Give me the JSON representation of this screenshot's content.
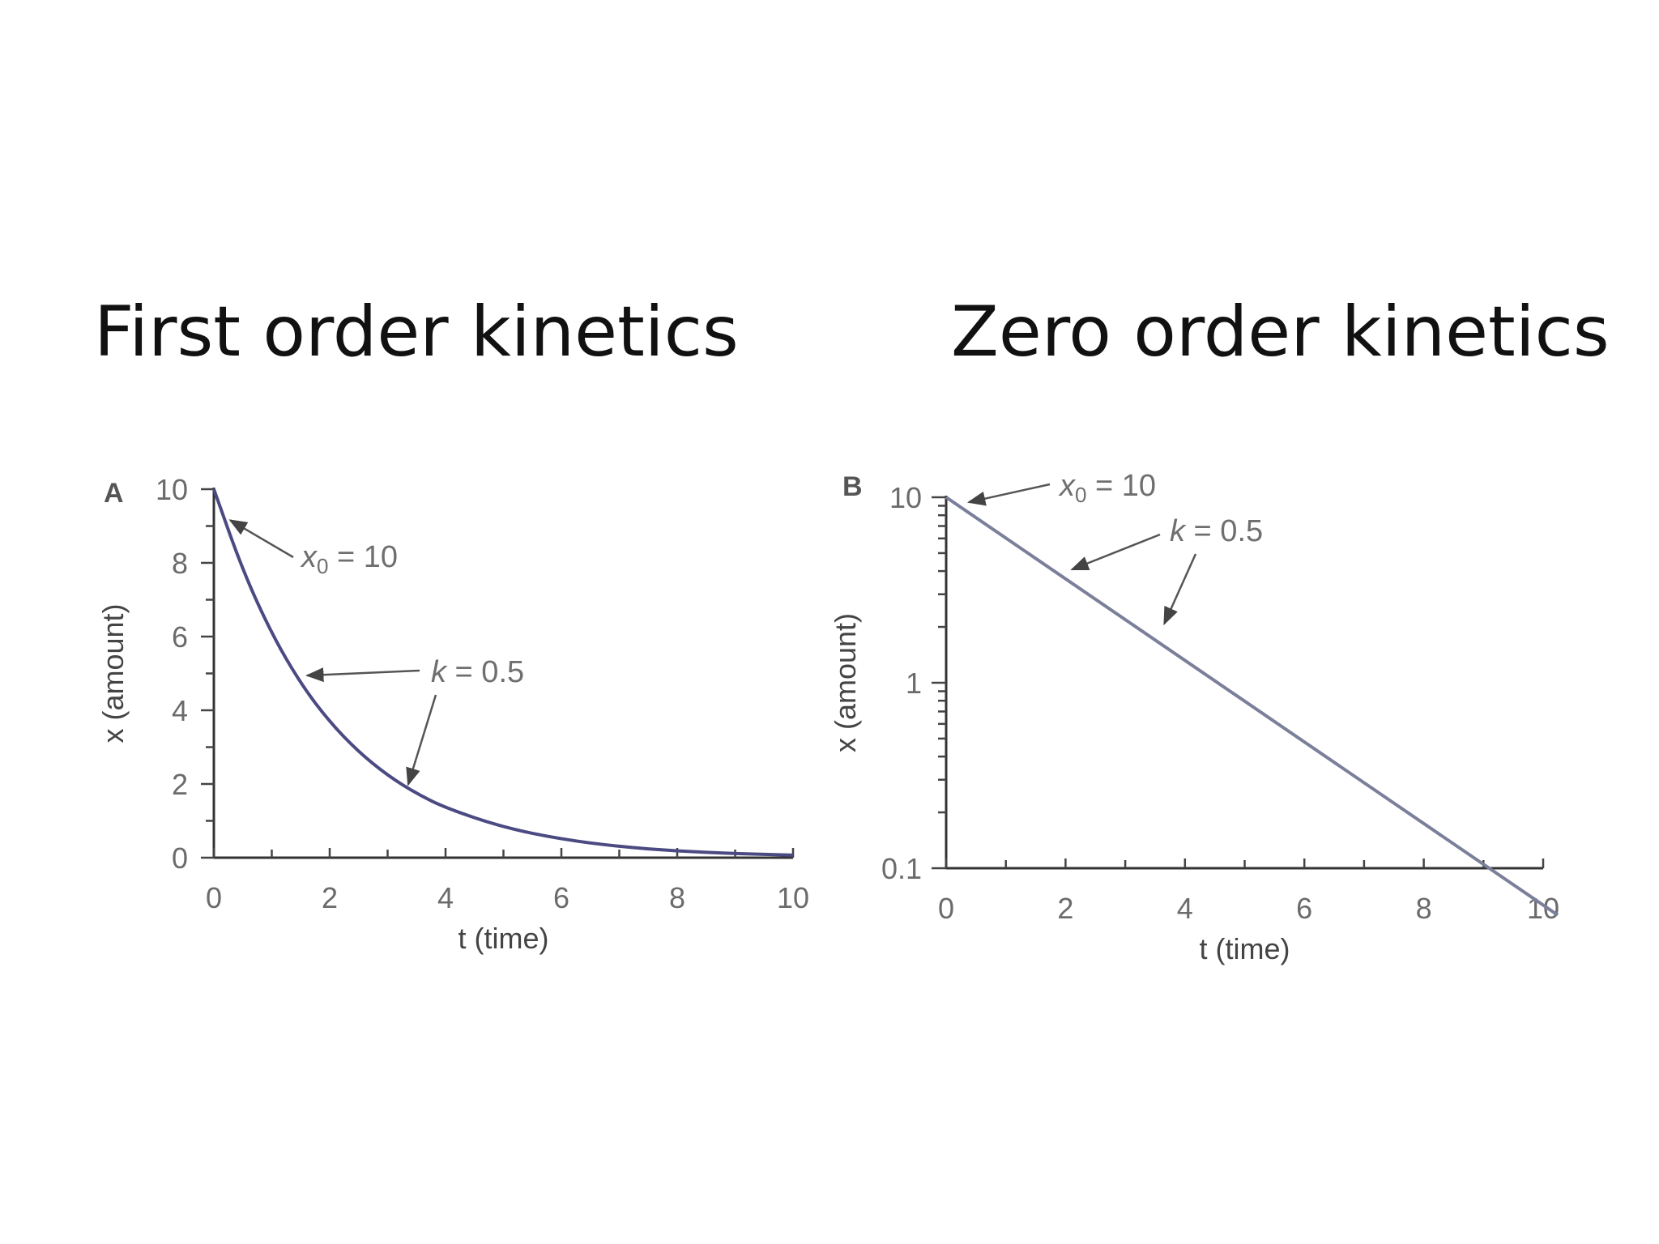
{
  "slide": {
    "left_title": "First order kinetics",
    "right_title": "Zero order kinetics"
  },
  "chart_data": [
    {
      "type": "line",
      "panel_label": "A",
      "title": "",
      "xlabel": "t (time)",
      "ylabel": "x (amount)",
      "xlim": [
        0,
        10
      ],
      "ylim": [
        0,
        10
      ],
      "yscale": "linear",
      "x_ticks": [
        0,
        2,
        4,
        6,
        8,
        10
      ],
      "y_ticks": [
        0,
        2,
        4,
        6,
        8,
        10
      ],
      "x": [
        0,
        0.5,
        1,
        1.5,
        2,
        2.5,
        3,
        3.5,
        4,
        5,
        6,
        7,
        8,
        9,
        10
      ],
      "series": [
        {
          "values": [
            10,
            7.79,
            6.07,
            4.72,
            3.68,
            2.87,
            2.23,
            1.74,
            1.35,
            0.82,
            0.5,
            0.3,
            0.18,
            0.11,
            0.07
          ]
        }
      ],
      "annotations": [
        {
          "text": "x0 = 10",
          "main": "x",
          "sub": "0",
          "rest": " = 10",
          "points_to_x": 0.2,
          "points_to_y": 9.2
        },
        {
          "text": "k = 0.5",
          "main": "k",
          "rest": " = 0.5",
          "points_to_x": [
            1.5,
            3.3
          ],
          "points_to_y": [
            4.9,
            1.9
          ]
        }
      ],
      "grid": false,
      "color": "#4b4a82"
    },
    {
      "type": "line",
      "panel_label": "B",
      "title": "",
      "xlabel": "t (time)",
      "ylabel": "x (amount)",
      "xlim": [
        0,
        10
      ],
      "ylim": [
        0.1,
        10
      ],
      "yscale": "log",
      "x_ticks": [
        0,
        2,
        4,
        6,
        8,
        10
      ],
      "y_ticks": [
        0.1,
        1,
        10
      ],
      "y_tick_labels": [
        "0.1",
        "1",
        "10"
      ],
      "x": [
        0,
        10
      ],
      "series": [
        {
          "values": [
            10,
            0.067
          ]
        }
      ],
      "annotations": [
        {
          "text": "x0 = 10",
          "main": "x",
          "sub": "0",
          "rest": " = 10",
          "points_to_x": 0.3,
          "points_to_y": 9.6
        },
        {
          "text": "k = 0.5",
          "main": "k",
          "rest": " = 0.5",
          "points_to_x": [
            2,
            3.6
          ],
          "points_to_y": [
            4.0,
            2.0
          ]
        }
      ],
      "grid": false,
      "color": "#7b7f9a"
    }
  ]
}
